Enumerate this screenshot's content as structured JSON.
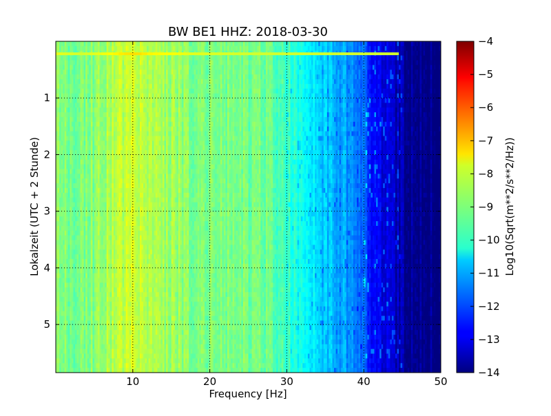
{
  "chart_data": {
    "type": "heatmap",
    "title": "BW BE1 HHZ: 2018-03-30",
    "xlabel": "Frequency [Hz]",
    "ylabel": "Lokalzeit (UTC + 2 Stunde)",
    "xlim": [
      0,
      50
    ],
    "ylim": [
      5.85,
      0
    ],
    "x_ticks": [
      10,
      20,
      30,
      40,
      50
    ],
    "x_tick_labels": [
      "10",
      "20",
      "30",
      "40",
      "50"
    ],
    "y_ticks": [
      1,
      2,
      3,
      4,
      5
    ],
    "y_tick_labels": [
      "1",
      "2",
      "3",
      "4",
      "5"
    ],
    "grid": true,
    "colormap": "jet",
    "colorbar": {
      "label": "Log10(Sqrt(m**2/s**2/Hz))",
      "range": [
        -14,
        -4
      ],
      "ticks": [
        -4,
        -5,
        -6,
        -7,
        -8,
        -9,
        -10,
        -11,
        -12,
        -13,
        -14
      ],
      "tick_labels": [
        "−4",
        "−5",
        "−6",
        "−7",
        "−8",
        "−9",
        "−10",
        "−11",
        "−12",
        "−13",
        "−14"
      ]
    },
    "profile": {
      "frequency_hz": [
        0,
        3,
        5,
        8,
        10,
        12,
        15,
        17,
        20,
        25,
        28,
        30,
        32,
        34,
        36,
        38,
        40,
        41,
        42,
        43,
        44,
        45,
        46,
        50
      ],
      "log10_amplitude": [
        -8.9,
        -9.1,
        -8.9,
        -8.5,
        -8.3,
        -8.6,
        -8.7,
        -8.9,
        -9.0,
        -9.1,
        -9.3,
        -9.6,
        -10.3,
        -10.6,
        -10.9,
        -11.3,
        -11.8,
        -12.5,
        -12.9,
        -13.2,
        -13.4,
        -13.6,
        -13.8,
        -14.0
      ]
    },
    "highlight": {
      "time_h": 0.22,
      "log10_amplitude": -8.2,
      "max_frequency_hz": 44.5
    }
  }
}
